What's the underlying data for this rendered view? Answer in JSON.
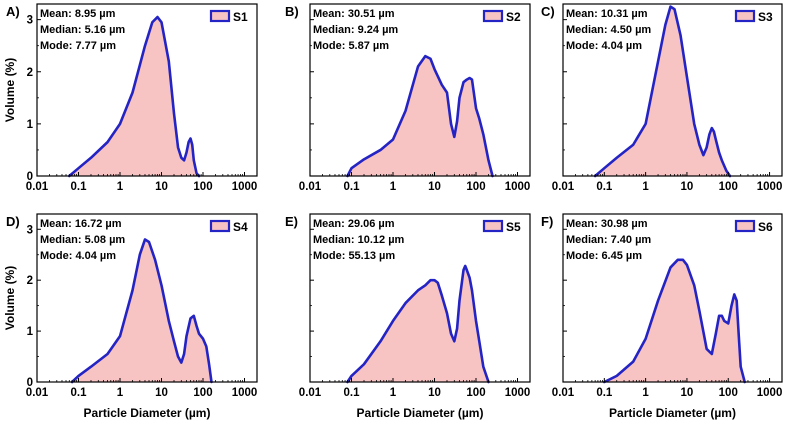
{
  "figure": {
    "xlabel": "Particle Diameter (µm)",
    "ylabel": "Volume (%)",
    "x_ticks": [
      "0.01",
      "0.1",
      "1",
      "10",
      "100",
      "1000"
    ],
    "y_ticks": [
      "0",
      "1",
      "2",
      "3"
    ],
    "fill_color": "#f7c3c3",
    "line_color": "#2424c4"
  },
  "chart_data": [
    {
      "type": "area",
      "panel": "A)",
      "legend": "S1",
      "stats": [
        "Mean: 8.95 µm",
        "Median: 5.16 µm",
        "Mode: 7.77 µm"
      ],
      "xscale": "log",
      "xlim": [
        0.01,
        2000
      ],
      "ylim": [
        0,
        3.3
      ],
      "x": [
        0.06,
        0.1,
        0.2,
        0.5,
        1,
        2,
        4,
        6,
        8,
        10,
        15,
        20,
        25,
        30,
        35,
        40,
        45,
        50,
        55,
        60,
        70,
        80
      ],
      "y": [
        0,
        0.15,
        0.35,
        0.65,
        1.0,
        1.6,
        2.5,
        2.95,
        3.05,
        2.95,
        2.2,
        1.2,
        0.55,
        0.35,
        0.3,
        0.45,
        0.65,
        0.72,
        0.6,
        0.3,
        0.05,
        0
      ]
    },
    {
      "type": "area",
      "panel": "B)",
      "legend": "S2",
      "stats": [
        "Mean: 30.51 µm",
        "Median: 9.24 µm",
        "Mode: 5.87 µm"
      ],
      "xscale": "log",
      "xlim": [
        0.01,
        2000
      ],
      "ylim": [
        0,
        3.3
      ],
      "x": [
        0.08,
        0.1,
        0.2,
        0.5,
        1,
        2,
        4,
        6,
        8,
        10,
        15,
        20,
        25,
        30,
        35,
        40,
        50,
        60,
        70,
        80,
        100,
        120,
        150,
        200,
        250
      ],
      "y": [
        0,
        0.15,
        0.32,
        0.5,
        0.7,
        1.25,
        2.1,
        2.3,
        2.25,
        2.05,
        1.75,
        1.6,
        1.0,
        0.75,
        1.05,
        1.5,
        1.8,
        1.85,
        1.88,
        1.85,
        1.3,
        1.1,
        0.8,
        0.3,
        0
      ]
    },
    {
      "type": "area",
      "panel": "C)",
      "legend": "S3",
      "stats": [
        "Mean: 10.31 µm",
        "Median: 4.50 µm",
        "Mode: 4.04 µm"
      ],
      "xscale": "log",
      "xlim": [
        0.01,
        2000
      ],
      "ylim": [
        0,
        3.3
      ],
      "x": [
        0.06,
        0.1,
        0.2,
        0.5,
        1,
        2,
        3,
        4,
        5,
        7,
        10,
        15,
        20,
        25,
        30,
        35,
        40,
        45,
        50,
        60,
        70,
        90,
        110
      ],
      "y": [
        0,
        0.15,
        0.35,
        0.6,
        1.0,
        2.2,
        2.9,
        3.25,
        3.2,
        2.7,
        1.9,
        1.0,
        0.6,
        0.4,
        0.55,
        0.8,
        0.92,
        0.85,
        0.7,
        0.45,
        0.3,
        0.1,
        0
      ]
    },
    {
      "type": "area",
      "panel": "D)",
      "legend": "S4",
      "stats": [
        "Mean: 16.72 µm",
        "Median: 5.08 µm",
        "Mode: 4.04 µm"
      ],
      "xscale": "log",
      "xlim": [
        0.01,
        2000
      ],
      "ylim": [
        0,
        3.3
      ],
      "x": [
        0.07,
        0.1,
        0.2,
        0.5,
        1,
        2,
        3,
        4,
        5,
        7,
        10,
        15,
        20,
        25,
        30,
        35,
        40,
        50,
        60,
        70,
        80,
        100,
        120,
        140,
        160
      ],
      "y": [
        0,
        0.12,
        0.3,
        0.55,
        0.9,
        1.8,
        2.5,
        2.8,
        2.75,
        2.4,
        1.9,
        1.2,
        0.8,
        0.5,
        0.38,
        0.55,
        0.9,
        1.25,
        1.3,
        1.1,
        0.95,
        0.85,
        0.7,
        0.35,
        0
      ]
    },
    {
      "type": "area",
      "panel": "E)",
      "legend": "S5",
      "stats": [
        "Mean: 29.06 µm",
        "Median: 10.12 µm",
        "Mode: 55.13 µm"
      ],
      "xscale": "log",
      "xlim": [
        0.01,
        2000
      ],
      "ylim": [
        0,
        3.3
      ],
      "x": [
        0.08,
        0.1,
        0.2,
        0.5,
        1,
        2,
        4,
        6,
        8,
        10,
        12,
        15,
        20,
        25,
        30,
        35,
        40,
        50,
        55,
        60,
        70,
        80,
        100,
        120,
        150,
        200
      ],
      "y": [
        0,
        0.12,
        0.35,
        0.8,
        1.2,
        1.55,
        1.8,
        1.9,
        2.0,
        2.0,
        1.95,
        1.7,
        1.35,
        0.95,
        0.8,
        1.05,
        1.6,
        2.2,
        2.28,
        2.2,
        2.05,
        1.8,
        1.2,
        0.8,
        0.3,
        0
      ]
    },
    {
      "type": "area",
      "panel": "F)",
      "legend": "S6",
      "stats": [
        "Mean: 30.98 µm",
        "Median: 7.40 µm",
        "Mode: 6.45 µm"
      ],
      "xscale": "log",
      "xlim": [
        0.01,
        2000
      ],
      "ylim": [
        0,
        3.3
      ],
      "x": [
        0.1,
        0.2,
        0.5,
        1,
        2,
        4,
        6,
        8,
        10,
        15,
        20,
        30,
        40,
        50,
        60,
        70,
        80,
        100,
        120,
        140,
        160,
        180,
        200,
        250
      ],
      "y": [
        0,
        0.12,
        0.4,
        0.85,
        1.6,
        2.25,
        2.4,
        2.4,
        2.3,
        1.9,
        1.4,
        0.65,
        0.55,
        0.95,
        1.3,
        1.3,
        1.2,
        1.15,
        1.5,
        1.72,
        1.6,
        0.9,
        0.3,
        0
      ]
    }
  ]
}
